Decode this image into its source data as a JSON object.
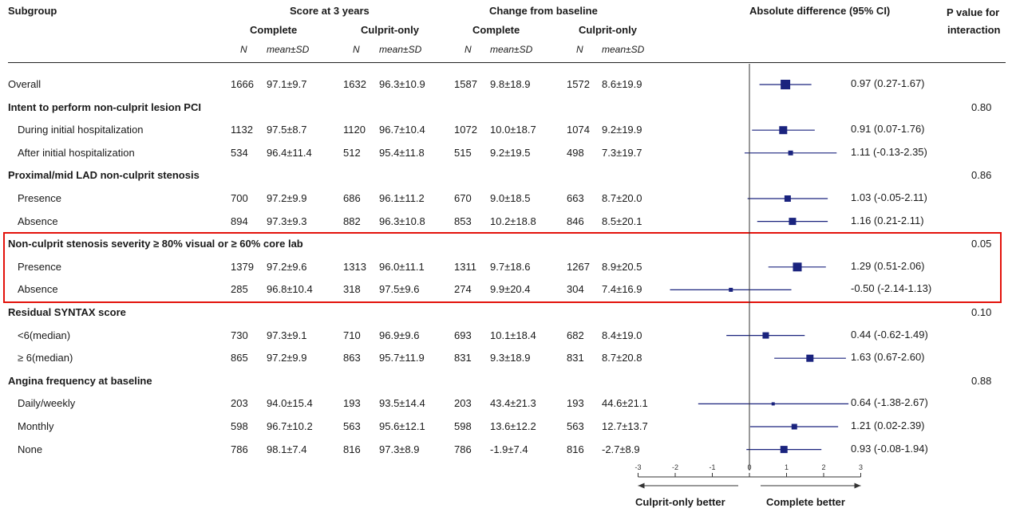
{
  "header": {
    "subgroup": "Subgroup",
    "score": "Score at 3 years",
    "change": "Change from baseline",
    "diff": "Absolute difference (95% CI)",
    "pval_line1": "P value for",
    "pval_line2": "interaction",
    "complete": "Complete",
    "culprit": "Culprit-only",
    "n": "N",
    "meansd": "mean±SD"
  },
  "chart_data": {
    "type": "forest",
    "title": "",
    "xlim": [
      -3,
      3
    ],
    "xticks": [
      "-3",
      "-2",
      "-1",
      "0",
      "1",
      "2",
      "3"
    ],
    "left_label": "Culprit-only better",
    "right_label": "Complete better",
    "marker_color": "#1a237e",
    "highlight_color": "#e3120b",
    "rows": [
      {
        "kind": "data",
        "label": "Overall",
        "n_sc": "1666",
        "m_sc": "97.1±9.7",
        "n_sk": "1632",
        "m_sk": "96.3±10.9",
        "n_cc": "1587",
        "m_cc": "9.8±18.9",
        "n_ck": "1572",
        "m_ck": "8.6±19.9",
        "est": 0.97,
        "lo": 0.27,
        "hi": 1.67,
        "ci_text": "0.97 (0.27-1.67)",
        "size": 12
      },
      {
        "kind": "group",
        "label": "Intent to perform non-culprit lesion PCI",
        "p": "0.80"
      },
      {
        "kind": "data",
        "label": "During initial hospitalization",
        "n_sc": "1132",
        "m_sc": "97.5±8.7",
        "n_sk": "1120",
        "m_sk": "96.7±10.4",
        "n_cc": "1072",
        "m_cc": "10.0±18.7",
        "n_ck": "1074",
        "m_ck": "9.2±19.9",
        "est": 0.91,
        "lo": 0.07,
        "hi": 1.76,
        "ci_text": "0.91 (0.07-1.76)",
        "size": 10
      },
      {
        "kind": "data",
        "label": "After initial hospitalization",
        "n_sc": "534",
        "m_sc": "96.4±11.4",
        "n_sk": "512",
        "m_sk": "95.4±11.8",
        "n_cc": "515",
        "m_cc": "9.2±19.5",
        "n_ck": "498",
        "m_ck": "7.3±19.7",
        "est": 1.11,
        "lo": -0.13,
        "hi": 2.35,
        "ci_text": "1.11 (-0.13-2.35)",
        "size": 6
      },
      {
        "kind": "group",
        "label": "Proximal/mid LAD non-culprit stenosis",
        "p": "0.86"
      },
      {
        "kind": "data",
        "label": "Presence",
        "n_sc": "700",
        "m_sc": "97.2±9.9",
        "n_sk": "686",
        "m_sk": "96.1±11.2",
        "n_cc": "670",
        "m_cc": "9.0±18.5",
        "n_ck": "663",
        "m_ck": "8.7±20.0",
        "est": 1.03,
        "lo": -0.05,
        "hi": 2.11,
        "ci_text": "1.03 (-0.05-2.11)",
        "size": 8
      },
      {
        "kind": "data",
        "label": "Absence",
        "n_sc": "894",
        "m_sc": "97.3±9.3",
        "n_sk": "882",
        "m_sk": "96.3±10.8",
        "n_cc": "853",
        "m_cc": "10.2±18.8",
        "n_ck": "846",
        "m_ck": "8.5±20.1",
        "est": 1.16,
        "lo": 0.21,
        "hi": 2.11,
        "ci_text": "1.16 (0.21-2.11)",
        "size": 9
      },
      {
        "kind": "group",
        "label": "Non-culprit stenosis severity ≥ 80% visual or ≥ 60% core lab",
        "p": "0.05"
      },
      {
        "kind": "data",
        "label": "Presence",
        "n_sc": "1379",
        "m_sc": "97.2±9.6",
        "n_sk": "1313",
        "m_sk": "96.0±11.1",
        "n_cc": "1311",
        "m_cc": "9.7±18.6",
        "n_ck": "1267",
        "m_ck": "8.9±20.5",
        "est": 1.29,
        "lo": 0.51,
        "hi": 2.06,
        "ci_text": "1.29 (0.51-2.06)",
        "size": 11
      },
      {
        "kind": "data",
        "label": "Absence",
        "n_sc": "285",
        "m_sc": "96.8±10.4",
        "n_sk": "318",
        "m_sk": "97.5±9.6",
        "n_cc": "274",
        "m_cc": "9.9±20.4",
        "n_ck": "304",
        "m_ck": "7.4±16.9",
        "est": -0.5,
        "lo": -2.14,
        "hi": 1.13,
        "ci_text": "-0.50 (-2.14-1.13)",
        "size": 5
      },
      {
        "kind": "group",
        "label": "Residual SYNTAX score",
        "p": "0.10"
      },
      {
        "kind": "data",
        "label": "<6(median)",
        "n_sc": "730",
        "m_sc": "97.3±9.1",
        "n_sk": "710",
        "m_sk": "96.9±9.6",
        "n_cc": "693",
        "m_cc": "10.1±18.4",
        "n_ck": "682",
        "m_ck": "8.4±19.0",
        "est": 0.44,
        "lo": -0.62,
        "hi": 1.49,
        "ci_text": "0.44 (-0.62-1.49)",
        "size": 8
      },
      {
        "kind": "data",
        "label": "≥ 6(median)",
        "n_sc": "865",
        "m_sc": "97.2±9.9",
        "n_sk": "863",
        "m_sk": "95.7±11.9",
        "n_cc": "831",
        "m_cc": "9.3±18.9",
        "n_ck": "831",
        "m_ck": "8.7±20.8",
        "est": 1.63,
        "lo": 0.67,
        "hi": 2.6,
        "ci_text": "1.63 (0.67-2.60)",
        "size": 9
      },
      {
        "kind": "group",
        "label": "Angina frequency at baseline",
        "p": "0.88"
      },
      {
        "kind": "data",
        "label": "Daily/weekly",
        "n_sc": "203",
        "m_sc": "94.0±15.4",
        "n_sk": "193",
        "m_sk": "93.5±14.4",
        "n_cc": "203",
        "m_cc": "43.4±21.3",
        "n_ck": "193",
        "m_ck": "44.6±21.1",
        "est": 0.64,
        "lo": -1.38,
        "hi": 2.67,
        "ci_text": "0.64 (-1.38-2.67)",
        "size": 4
      },
      {
        "kind": "data",
        "label": "Monthly",
        "n_sc": "598",
        "m_sc": "96.7±10.2",
        "n_sk": "563",
        "m_sk": "95.6±12.1",
        "n_cc": "598",
        "m_cc": "13.6±12.2",
        "n_ck": "563",
        "m_ck": "12.7±13.7",
        "est": 1.21,
        "lo": 0.02,
        "hi": 2.39,
        "ci_text": "1.21 (0.02-2.39)",
        "size": 7
      },
      {
        "kind": "data",
        "label": "None",
        "n_sc": "786",
        "m_sc": "98.1±7.4",
        "n_sk": "816",
        "m_sk": "97.3±8.9",
        "n_cc": "786",
        "m_cc": "-1.9±7.4",
        "n_ck": "816",
        "m_ck": "-2.7±8.9",
        "est": 0.93,
        "lo": -0.08,
        "hi": 1.94,
        "ci_text": "0.93 (-0.08-1.94)",
        "size": 9
      }
    ]
  }
}
